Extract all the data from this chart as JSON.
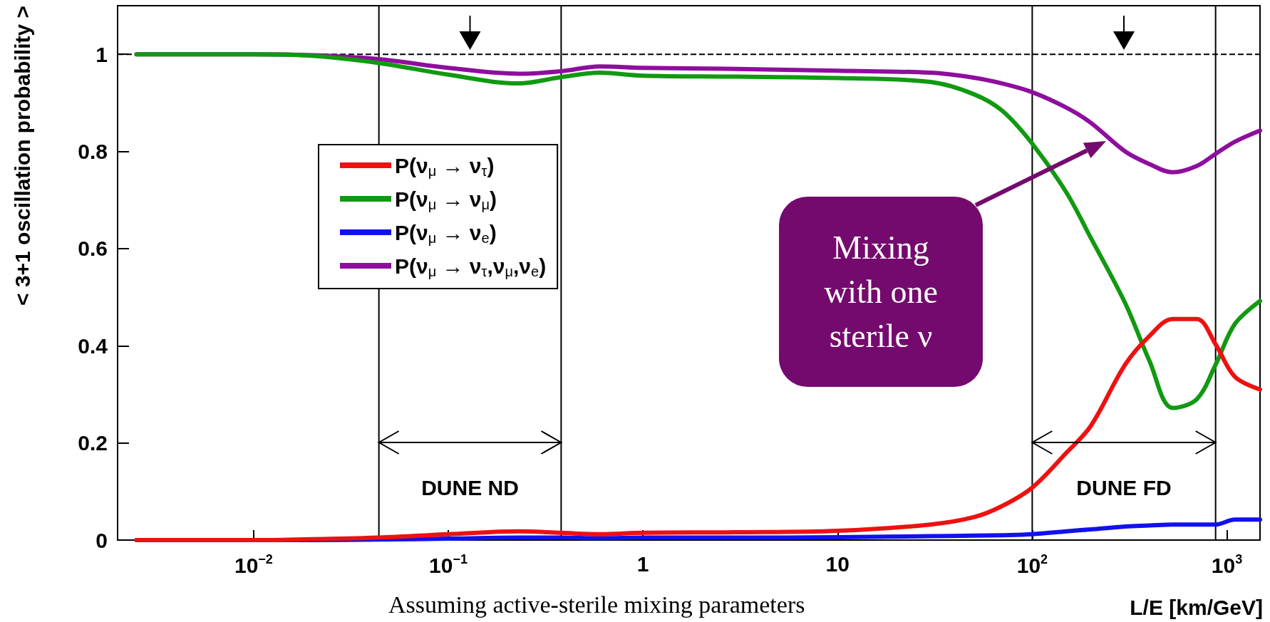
{
  "chart_data": {
    "type": "line",
    "xlabel": "L/E [km/GeV]",
    "ylabel": "< 3+1 oscillation probability >",
    "annotations": [
      "Mixing with one sterile ν",
      "DUNE ND",
      "DUNE FD",
      "Assuming active-sterile mixing parameters"
    ],
    "log": "x",
    "xlim": [
      0.002,
      1480
    ],
    "xticks": [
      {
        "value": 0.01,
        "label": "10$^{−2}$"
      },
      {
        "value": 0.1,
        "label": "10$^{−1}$"
      },
      1,
      10,
      {
        "value": 100,
        "label": "10$^{2}$"
      },
      {
        "value": 1000,
        "label": "10$^{3}$"
      }
    ],
    "ylim": [
      0,
      1.1
    ],
    "yticks": [
      0,
      0.2,
      0.4,
      0.6,
      0.8,
      1
    ],
    "x": [
      0.0025,
      0.01,
      0.02,
      0.044,
      0.1,
      0.23,
      0.38,
      0.6,
      1,
      3,
      10,
      30,
      50,
      70,
      100,
      150,
      200,
      300,
      400,
      527,
      700,
      875,
      1100,
      1480
    ],
    "series": [
      {
        "name": "P(ν$_{μ}$ → ν$_{τ}$)",
        "color": "#ee1111",
        "values": [
          0,
          0,
          0.002,
          0.005,
          0.012,
          0.018,
          0.015,
          0.012,
          0.015,
          0.016,
          0.019,
          0.032,
          0.047,
          0.07,
          0.108,
          0.18,
          0.235,
          0.361,
          0.42,
          0.455,
          0.455,
          0.403,
          0.336,
          0.31
        ]
      },
      {
        "name": "P(ν$_{μ}$ → ν$_{μ}$)",
        "color": "#119911",
        "values": [
          1,
          1,
          0.997,
          0.982,
          0.958,
          0.94,
          0.953,
          0.962,
          0.956,
          0.954,
          0.951,
          0.943,
          0.918,
          0.884,
          0.816,
          0.715,
          0.622,
          0.488,
          0.369,
          0.272,
          0.29,
          0.361,
          0.445,
          0.492
        ]
      },
      {
        "name": "P(ν$_{μ}$ → ν$_{e}$)",
        "color": "#1111ee",
        "values": [
          0,
          0,
          0,
          0.001,
          0.003,
          0.005,
          0.005,
          0.004,
          0.005,
          0.005,
          0.006,
          0.008,
          0.009,
          0.01,
          0.012,
          0.018,
          0.022,
          0.028,
          0.03,
          0.032,
          0.032,
          0.032,
          0.042,
          0.042
        ]
      },
      {
        "name": "P(ν$_{μ}$ → ν$_{τ}$,ν$_{μ}$,ν$_{e}$)",
        "color": "#8e0e9e",
        "values": [
          1,
          1,
          0.998,
          0.99,
          0.972,
          0.96,
          0.965,
          0.975,
          0.972,
          0.97,
          0.966,
          0.962,
          0.952,
          0.94,
          0.922,
          0.89,
          0.859,
          0.8,
          0.774,
          0.757,
          0.77,
          0.795,
          0.82,
          0.843
        ]
      }
    ],
    "ref_lines": [
      {
        "axis": "y",
        "value": 1,
        "label": null,
        "color": "#000000",
        "line_style": "dashed"
      },
      {
        "axis": "x",
        "value": 0.044,
        "label": null,
        "color": "#000000",
        "line_style": "solid"
      },
      {
        "axis": "x",
        "value": 0.38,
        "label": null,
        "color": "#000000",
        "line_style": "solid"
      },
      {
        "axis": "x",
        "value": 100,
        "label": null,
        "color": "#000000",
        "line_style": "solid"
      },
      {
        "axis": "x",
        "value": 875,
        "label": null,
        "color": "#000000",
        "line_style": "solid"
      }
    ],
    "legend": "left",
    "marker": "none",
    "line_style": "solid"
  }
}
